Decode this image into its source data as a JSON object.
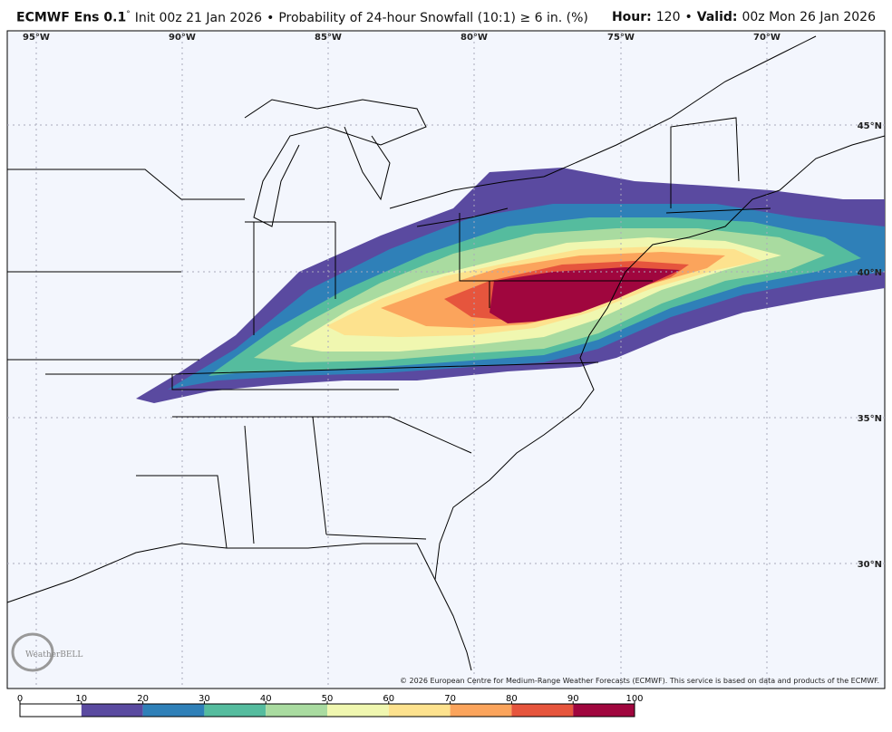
{
  "header": {
    "model": "ECMWF Ens 0.1",
    "degree": "°",
    "init": "Init 00z 21 Jan 2026",
    "separator": "•",
    "product": "Probability of 24-hour Snowfall (10:1) ≥ 6 in. (%)",
    "hour_label": "Hour:",
    "hour": "120",
    "valid_label": "Valid:",
    "valid": "00z Mon 26 Jan 2026"
  },
  "map": {
    "lon_labels": [
      "95°W",
      "90°W",
      "85°W",
      "80°W",
      "75°W",
      "70°W"
    ],
    "lat_labels": [
      "45°N",
      "40°N",
      "35°N",
      "30°N"
    ],
    "logo": "WeatherBELL",
    "credit": "© 2026 European Centre for Medium-Range Weather Forecasts (ECMWF). This service is based on data and products of the ECMWF."
  },
  "colorbar": {
    "ticks": [
      0,
      10,
      20,
      30,
      40,
      50,
      60,
      70,
      80,
      90,
      100
    ],
    "colors": [
      "#ffffff",
      "#5a4aa0",
      "#2f80b8",
      "#55bc9e",
      "#a9dba0",
      "#f0f7b0",
      "#fde28e",
      "#fba45c",
      "#e6553d",
      "#a0063e"
    ]
  }
}
